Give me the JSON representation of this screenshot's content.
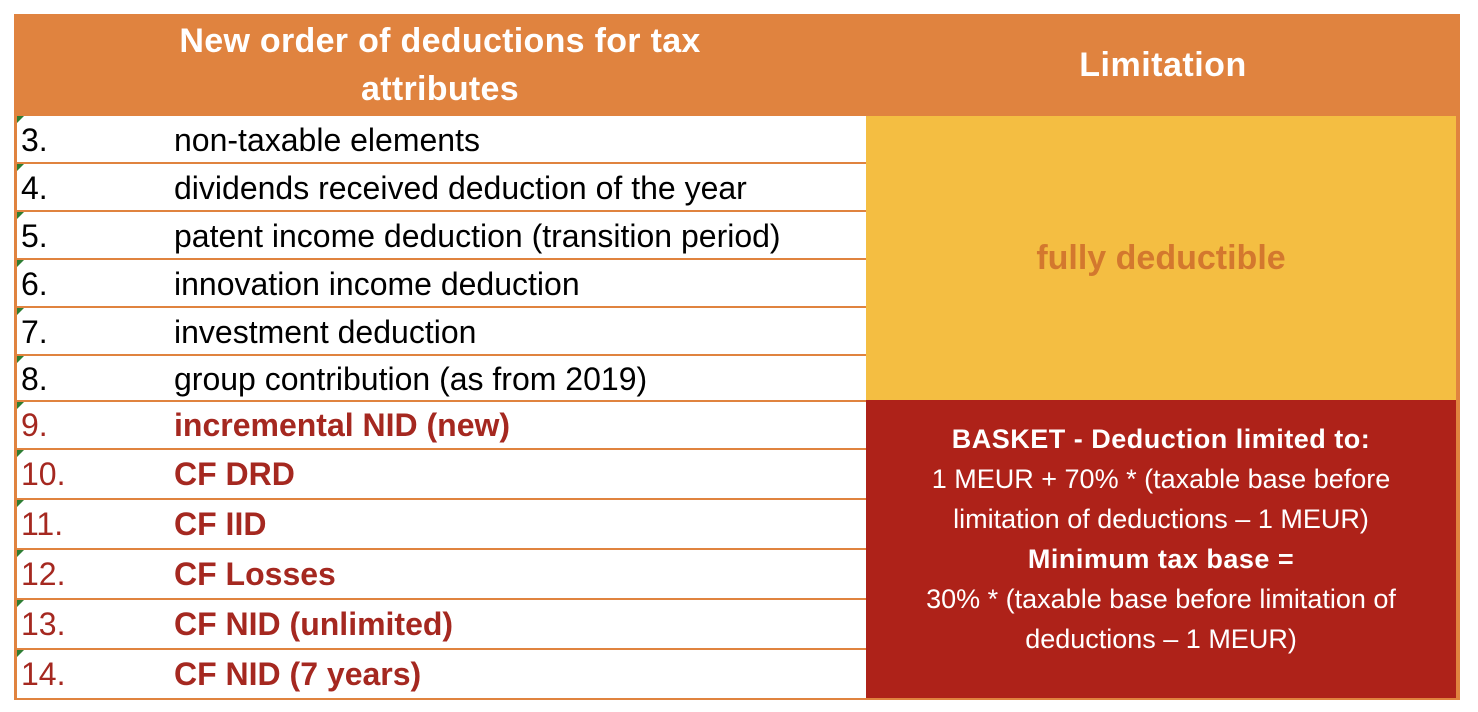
{
  "header": {
    "left_title": "New order of deductions for tax attributes",
    "right_title": "Limitation"
  },
  "rows": [
    {
      "num": "3.",
      "label": "non-taxable elements",
      "style": "normal"
    },
    {
      "num": "4.",
      "label": "dividends received deduction of the year",
      "style": "normal"
    },
    {
      "num": "5.",
      "label": "patent income deduction (transition period)",
      "style": "normal"
    },
    {
      "num": "6.",
      "label": "innovation income deduction",
      "style": "normal"
    },
    {
      "num": "7.",
      "label": "investment deduction",
      "style": "normal"
    },
    {
      "num": "8.",
      "label": "group contribution (as from 2019)",
      "style": "normal"
    },
    {
      "num": "9.",
      "label": "incremental NID (new)",
      "style": "red"
    },
    {
      "num": "10.",
      "label": "CF DRD",
      "style": "red"
    },
    {
      "num": "11.",
      "label": "CF IID",
      "style": "red"
    },
    {
      "num": "12.",
      "label": "CF Losses",
      "style": "red"
    },
    {
      "num": "13.",
      "label": "CF NID (unlimited)",
      "style": "red"
    },
    {
      "num": "14.",
      "label": "CF NID (7 years)",
      "style": "red"
    }
  ],
  "limitation": {
    "fully_deductible": "fully deductible",
    "basket_heading": "BASKET - Deduction limited to:",
    "basket_line1": "1 MEUR + 70% * (taxable base before",
    "basket_line2": "limitation of deductions – 1 MEUR)",
    "minimum_heading": "Minimum tax base =",
    "minimum_line1": "30% * (taxable base before limitation of",
    "minimum_line2": "deductions – 1 MEUR)"
  },
  "colors": {
    "header_orange": "#E0833F",
    "fully_yellow": "#F4BE42",
    "fully_text": "#D3782E",
    "basket_red": "#AE2219",
    "red_text": "#A52820"
  }
}
